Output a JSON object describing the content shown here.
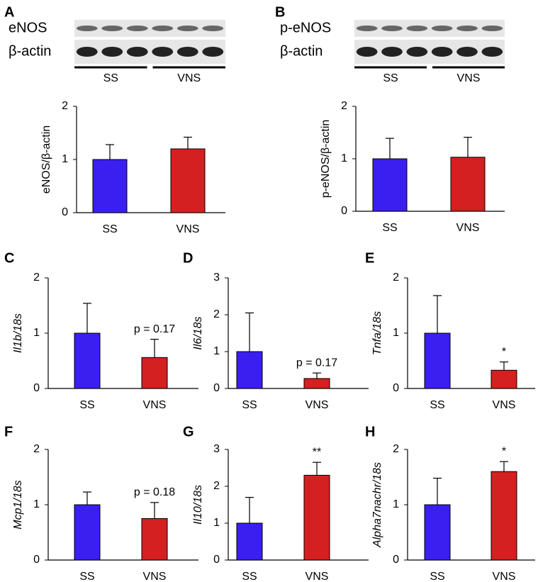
{
  "chart_data": [
    {
      "type": "bar",
      "panel": "A",
      "blot_labels": [
        "eNOS",
        "β-actin"
      ],
      "blot_groups": [
        "SS",
        "VNS"
      ],
      "y_label": "eNOS/β-actin",
      "categories": [
        "SS",
        "VNS"
      ],
      "values": [
        1.0,
        1.2
      ],
      "errors": [
        0.28,
        0.22
      ],
      "colors": [
        "#3a1ff0",
        "#d42020"
      ],
      "ylim": [
        0,
        2
      ],
      "yticks": [
        0,
        1,
        2
      ]
    },
    {
      "type": "bar",
      "panel": "B",
      "blot_labels": [
        "p-eNOS",
        "β-actin"
      ],
      "blot_groups": [
        "SS",
        "VNS"
      ],
      "y_label": "p-eNOS/β-actin",
      "categories": [
        "SS",
        "VNS"
      ],
      "values": [
        1.0,
        1.03
      ],
      "errors": [
        0.39,
        0.38
      ],
      "colors": [
        "#3a1ff0",
        "#d42020"
      ],
      "ylim": [
        0,
        2
      ],
      "yticks": [
        0,
        1,
        2
      ]
    },
    {
      "type": "bar",
      "panel": "C",
      "y_label": "Il1b/18s",
      "categories": [
        "SS",
        "VNS"
      ],
      "values": [
        1.0,
        0.56
      ],
      "errors": [
        0.54,
        0.33
      ],
      "colors": [
        "#3a1ff0",
        "#d42020"
      ],
      "ylim": [
        0,
        2
      ],
      "yticks": [
        0,
        1,
        2
      ],
      "annotation": "p = 0.17"
    },
    {
      "type": "bar",
      "panel": "D",
      "y_label": "Il6/18s",
      "categories": [
        "SS",
        "VNS"
      ],
      "values": [
        1.0,
        0.27
      ],
      "errors": [
        1.05,
        0.15
      ],
      "colors": [
        "#3a1ff0",
        "#d42020"
      ],
      "ylim": [
        0,
        3
      ],
      "yticks": [
        0,
        1,
        2,
        3
      ],
      "annotation": "p = 0.17"
    },
    {
      "type": "bar",
      "panel": "E",
      "y_label": "Tnfa/18s",
      "categories": [
        "SS",
        "VNS"
      ],
      "values": [
        1.0,
        0.33
      ],
      "errors": [
        0.68,
        0.15
      ],
      "colors": [
        "#3a1ff0",
        "#d42020"
      ],
      "ylim": [
        0,
        2
      ],
      "yticks": [
        0,
        1,
        2
      ],
      "annotation": "*"
    },
    {
      "type": "bar",
      "panel": "F",
      "y_label": "Mcp1/18s",
      "categories": [
        "SS",
        "VNS"
      ],
      "values": [
        1.0,
        0.75
      ],
      "errors": [
        0.23,
        0.29
      ],
      "colors": [
        "#3a1ff0",
        "#d42020"
      ],
      "ylim": [
        0,
        2
      ],
      "yticks": [
        0,
        1,
        2
      ],
      "annotation": "p = 0.18"
    },
    {
      "type": "bar",
      "panel": "G",
      "y_label": "Il10/18s",
      "categories": [
        "SS",
        "VNS"
      ],
      "values": [
        1.0,
        2.3
      ],
      "errors": [
        0.7,
        0.35
      ],
      "colors": [
        "#3a1ff0",
        "#d42020"
      ],
      "ylim": [
        0,
        3
      ],
      "yticks": [
        0,
        1,
        2,
        3
      ],
      "annotation": "**"
    },
    {
      "type": "bar",
      "panel": "H",
      "y_label": "Alpha7nachr/18s",
      "categories": [
        "SS",
        "VNS"
      ],
      "values": [
        1.0,
        1.6
      ],
      "errors": [
        0.48,
        0.18
      ],
      "colors": [
        "#3a1ff0",
        "#d42020"
      ],
      "ylim": [
        0,
        2
      ],
      "yticks": [
        0,
        1,
        2
      ],
      "annotation": "*"
    }
  ]
}
